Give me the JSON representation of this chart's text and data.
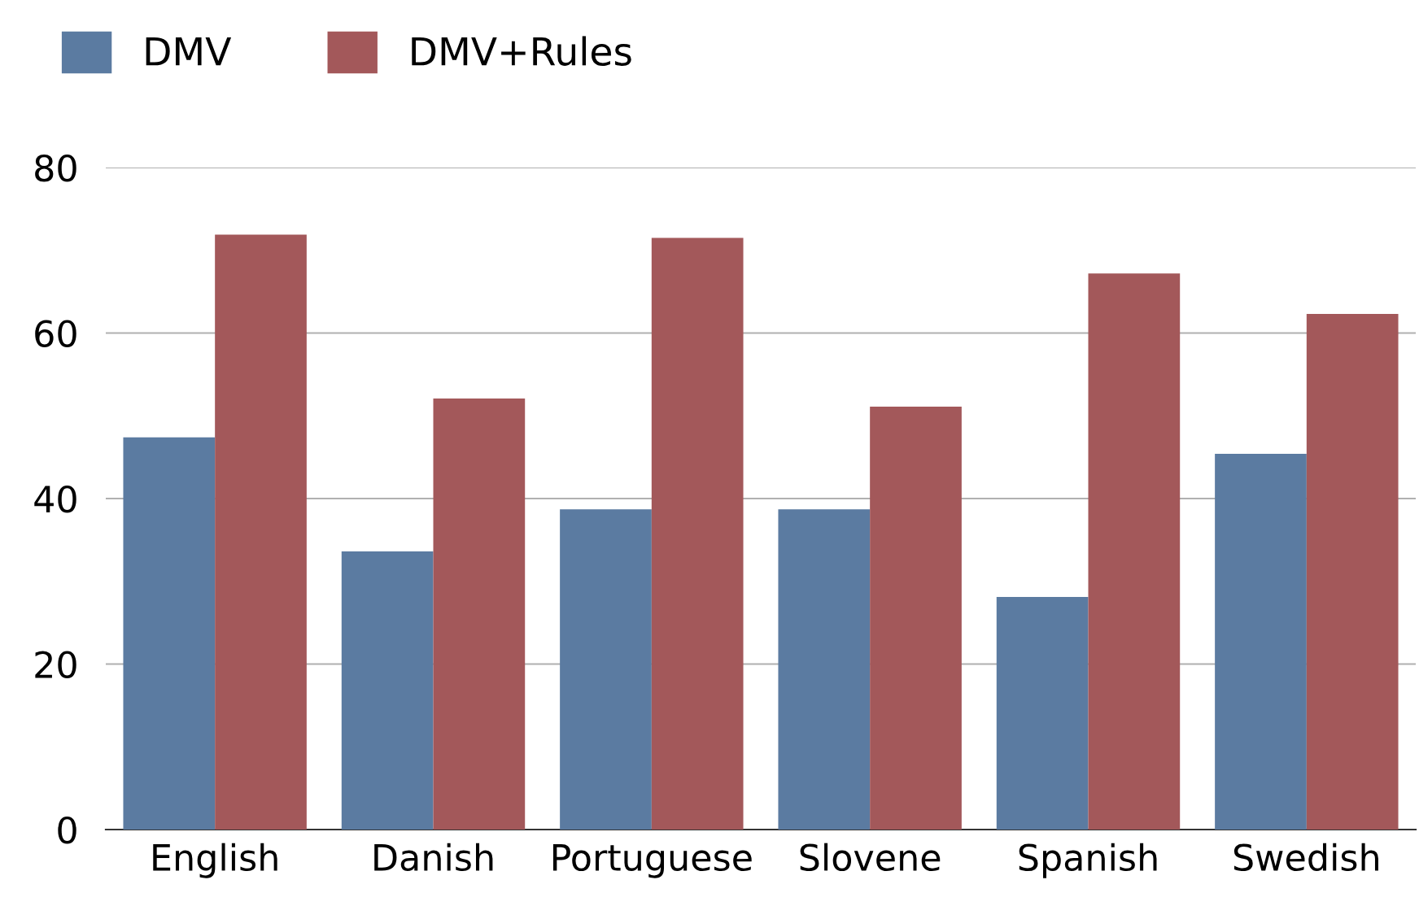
{
  "chart_data": {
    "type": "bar",
    "categories": [
      "English",
      "Danish",
      "Portuguese",
      "Slovene",
      "Spanish",
      "Swedish"
    ],
    "series": [
      {
        "name": "DMV",
        "color": "#5b7ba1",
        "values": [
          47.4,
          33.6,
          38.7,
          38.7,
          28.1,
          45.4
        ]
      },
      {
        "name": "DMV+Rules",
        "color": "#a3585a",
        "values": [
          71.9,
          52.1,
          71.5,
          51.1,
          67.2,
          62.3
        ]
      }
    ],
    "ylim": [
      0,
      80
    ],
    "yticks": [
      0,
      20,
      40,
      60,
      80
    ],
    "grid": "y",
    "legend": "top left"
  }
}
